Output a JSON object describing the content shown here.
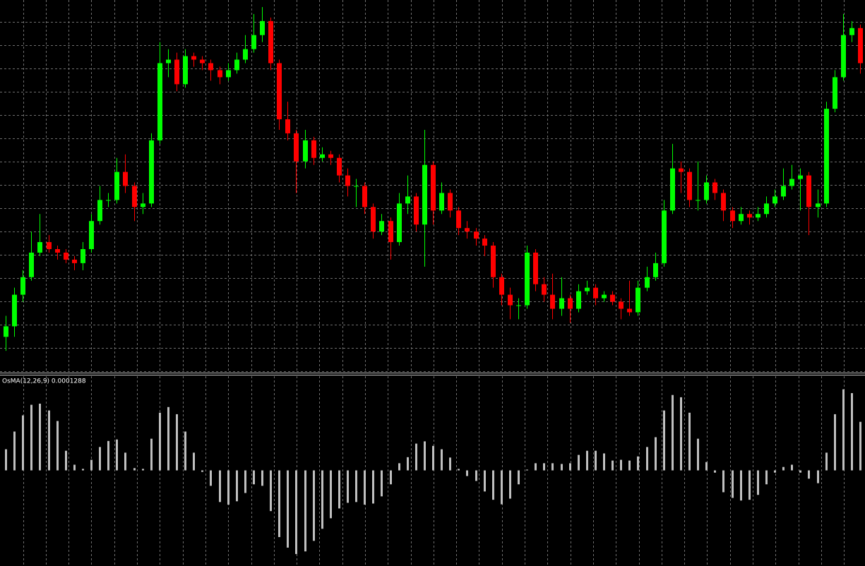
{
  "chart_data": [
    {
      "type": "candlestick",
      "open": [
        50,
        65,
        110,
        135,
        170,
        185,
        175,
        170,
        160,
        155,
        175,
        215,
        245,
        245,
        285,
        265,
        235,
        240,
        330,
        440,
        445,
        410,
        450,
        445,
        440,
        430,
        420,
        430,
        445,
        460,
        480,
        500,
        440,
        360,
        340,
        300,
        330,
        305,
        310,
        305,
        280,
        265,
        265,
        235,
        200,
        215,
        185,
        240,
        250,
        210,
        295,
        230,
        255,
        230,
        205,
        200,
        190,
        180,
        135,
        110,
        95,
        95,
        170,
        125,
        110,
        90,
        105,
        90,
        115,
        120,
        105,
        110,
        100,
        90,
        85,
        120,
        135,
        155,
        230,
        290,
        285,
        245,
        245,
        270,
        255,
        230,
        215,
        225,
        220,
        225,
        240,
        250,
        265,
        275,
        280,
        235,
        240,
        375,
        420,
        480,
        490
      ],
      "high": [
        80,
        120,
        145,
        200,
        225,
        195,
        180,
        175,
        165,
        185,
        225,
        265,
        255,
        305,
        310,
        270,
        255,
        340,
        470,
        460,
        455,
        460,
        455,
        450,
        445,
        435,
        440,
        455,
        480,
        510,
        520,
        505,
        445,
        385,
        345,
        345,
        335,
        320,
        315,
        310,
        290,
        275,
        270,
        240,
        225,
        220,
        255,
        280,
        255,
        345,
        300,
        270,
        260,
        235,
        215,
        205,
        195,
        185,
        140,
        120,
        105,
        180,
        175,
        135,
        140,
        135,
        110,
        125,
        130,
        125,
        115,
        115,
        105,
        130,
        130,
        150,
        170,
        245,
        325,
        300,
        290,
        300,
        280,
        275,
        260,
        235,
        235,
        230,
        235,
        250,
        260,
        290,
        295,
        290,
        285,
        260,
        385,
        430,
        510,
        500,
        495
      ],
      "low": [
        30,
        50,
        100,
        130,
        165,
        170,
        160,
        155,
        145,
        145,
        170,
        210,
        235,
        240,
        255,
        215,
        225,
        235,
        325,
        420,
        400,
        405,
        435,
        430,
        415,
        410,
        415,
        425,
        440,
        455,
        470,
        430,
        345,
        330,
        255,
        290,
        295,
        300,
        295,
        270,
        250,
        235,
        225,
        190,
        195,
        160,
        180,
        225,
        200,
        150,
        210,
        225,
        220,
        195,
        190,
        180,
        165,
        120,
        95,
        75,
        75,
        90,
        115,
        100,
        75,
        80,
        70,
        85,
        110,
        95,
        100,
        95,
        75,
        80,
        80,
        115,
        130,
        150,
        225,
        255,
        235,
        230,
        240,
        245,
        215,
        205,
        210,
        210,
        215,
        220,
        235,
        245,
        260,
        230,
        195,
        220,
        235,
        370,
        415,
        470,
        425
      ],
      "close": [
        65,
        110,
        135,
        170,
        185,
        175,
        170,
        160,
        155,
        175,
        215,
        245,
        245,
        285,
        265,
        235,
        240,
        330,
        440,
        445,
        410,
        450,
        445,
        440,
        430,
        420,
        430,
        445,
        460,
        480,
        500,
        440,
        360,
        340,
        300,
        330,
        305,
        310,
        305,
        280,
        265,
        265,
        235,
        200,
        215,
        185,
        240,
        250,
        210,
        295,
        230,
        255,
        230,
        205,
        200,
        190,
        180,
        135,
        110,
        95,
        95,
        170,
        125,
        110,
        90,
        105,
        90,
        115,
        120,
        105,
        110,
        100,
        90,
        85,
        120,
        135,
        155,
        230,
        290,
        285,
        245,
        245,
        270,
        255,
        230,
        215,
        225,
        220,
        225,
        240,
        250,
        265,
        275,
        280,
        235,
        240,
        375,
        420,
        480,
        490,
        440
      ],
      "up_color": "#00ff00",
      "down_color": "#ff0000",
      "ylim": [
        0,
        530
      ],
      "grid": true
    },
    {
      "type": "bar",
      "title": "OsMA(12,26,9) 0.0001288",
      "values": [
        5.6e-05,
        0.000103,
        0.000146,
        0.000174,
        0.000177,
        0.000159,
        0.000131,
        5.2e-05,
        1.5e-05,
        4e-06,
        2.8e-05,
        6.2e-05,
        7.8e-05,
        8.2e-05,
        4.7e-05,
        6e-06,
        4e-06,
        8.4e-05,
        0.000153,
        0.000168,
        0.000149,
        0.000103,
        4.7e-05,
        -4e-06,
        -4.1e-05,
        -8.4e-05,
        -9.1e-05,
        -8.2e-05,
        -6e-05,
        -3.7e-05,
        -4.1e-05,
        -0.000108,
        -0.000177,
        -0.000205,
        -0.000222,
        -0.000215,
        -0.000187,
        -0.000155,
        -0.000127,
        -0.000101,
        -8.6e-05,
        -8.4e-05,
        -9.1e-05,
        -8.8e-05,
        -6.9e-05,
        -3.7e-05,
        1.9e-05,
        3.5e-05,
        7.1e-05,
        7.7e-05,
        6.5e-05,
        5.6e-05,
        3.4e-05,
        4e-06,
        -1.5e-05,
        -2.8e-05,
        -5.6e-05,
        -7.8e-05,
        -9e-05,
        -7.5e-05,
        -3.7e-05,
        2e-06,
        1.9e-05,
        1.9e-05,
        1.9e-05,
        1.7e-05,
        1.9e-05,
        4.1e-05,
        5.2e-05,
        5.2e-05,
        4.5e-05,
        2.6e-05,
        2.8e-05,
        2.6e-05,
        3.7e-05,
        6.2e-05,
        8.8e-05,
        0.000159,
        0.0002,
        0.000194,
        0.000153,
        8.4e-05,
        2.2e-05,
        -6e-06,
        -5.8e-05,
        -7.3e-05,
        -8e-05,
        -7.8e-05,
        -6.5e-05,
        -3.7e-05,
        -6e-06,
        9e-06,
        1.5e-05,
        -6e-06,
        -2.2e-05,
        -3.4e-05,
        4.7e-05,
        0.000149,
        0.000215,
        0.000205,
        0.0001288
      ],
      "color": "#c0c0c0",
      "ylim": [
        -0.00025,
        0.00025
      ],
      "grid": true
    }
  ]
}
